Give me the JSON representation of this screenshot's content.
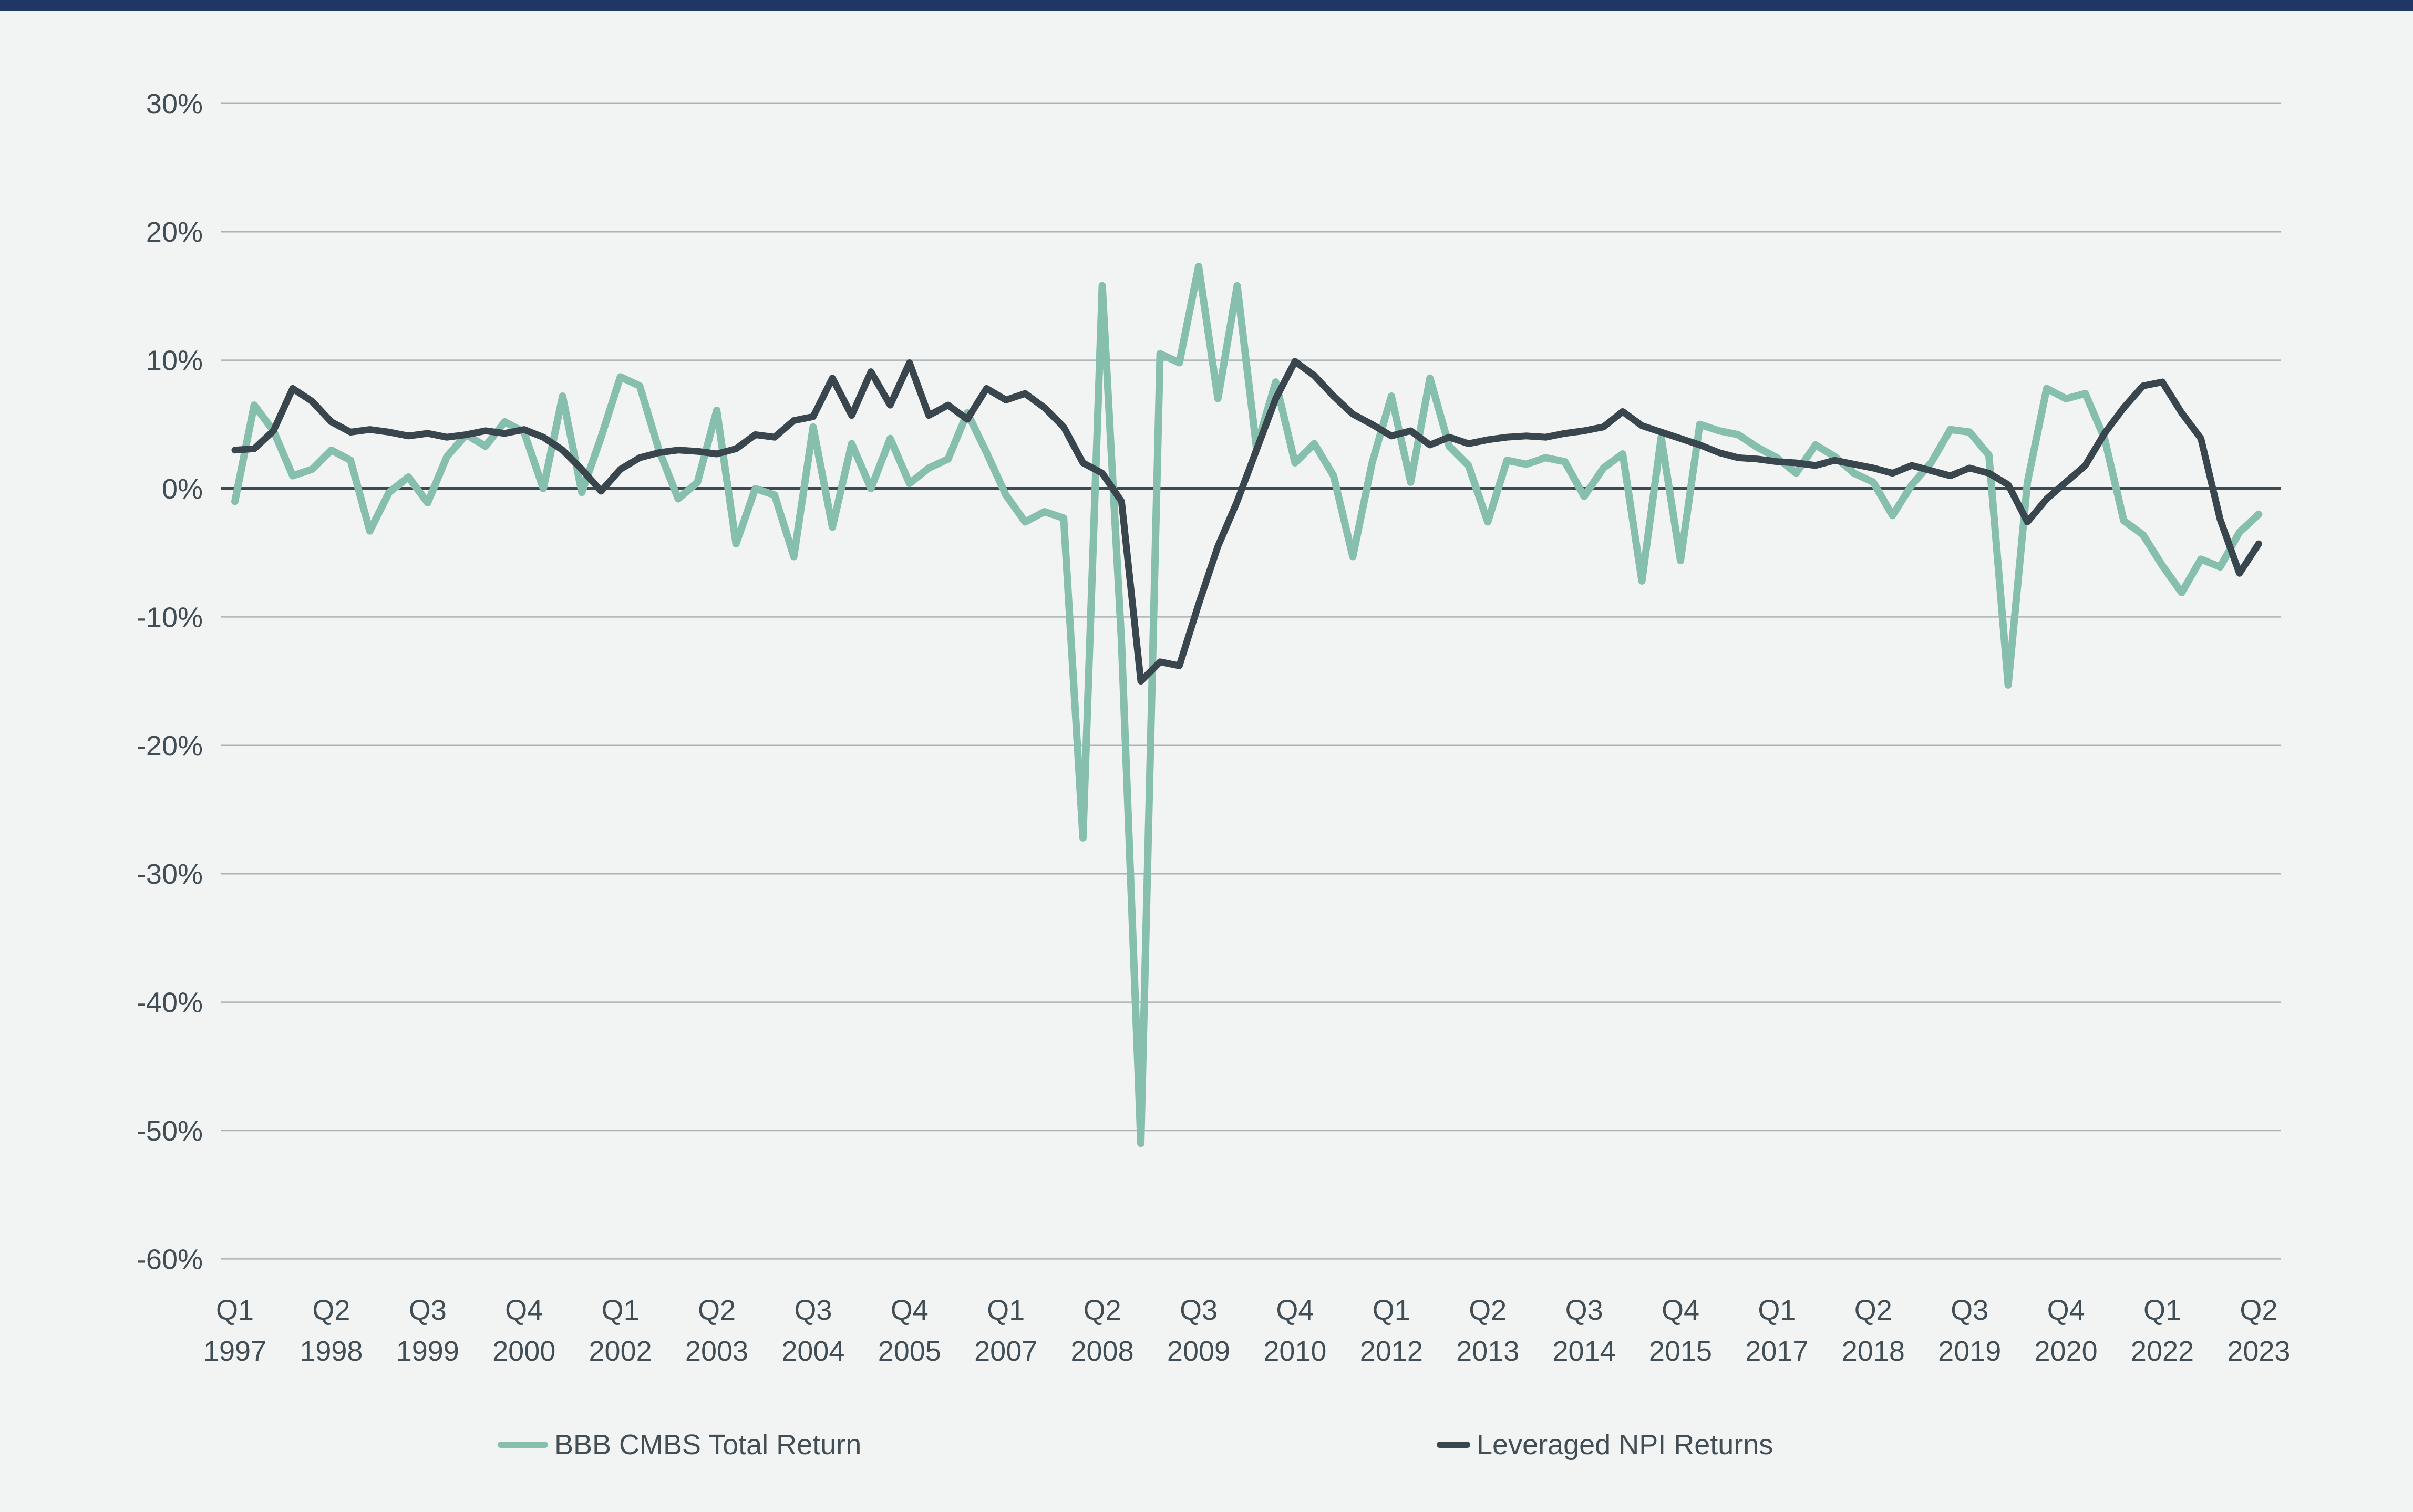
{
  "page": {
    "background_color": "#f2f4f4",
    "top_bar_color": "#1e3765",
    "text_color": "#424e55",
    "gridline_color": "#a9b2b5",
    "zero_line_color": "#3e4a51"
  },
  "chart_data": {
    "type": "line",
    "title": "",
    "xlabel": "",
    "ylabel": "",
    "grid": true,
    "legend_position": "bottom",
    "x_start": "1997Q1",
    "x_end": "2023Q2",
    "x_frequency": "quarterly",
    "ylim": [
      -60,
      30
    ],
    "y_ticks": [
      {
        "value": 30,
        "label": "30%"
      },
      {
        "value": 20,
        "label": "20%"
      },
      {
        "value": 10,
        "label": "10%"
      },
      {
        "value": 0,
        "label": "0%"
      },
      {
        "value": -10,
        "label": "-10%"
      },
      {
        "value": -20,
        "label": "-20%"
      },
      {
        "value": -30,
        "label": "-30%"
      },
      {
        "value": -40,
        "label": "-40%"
      },
      {
        "value": -50,
        "label": "-50%"
      },
      {
        "value": -60,
        "label": "-60%"
      }
    ],
    "x_ticks": [
      {
        "index": 0,
        "quarter": "Q1",
        "year": "1997"
      },
      {
        "index": 5,
        "quarter": "Q2",
        "year": "1998"
      },
      {
        "index": 10,
        "quarter": "Q3",
        "year": "1999"
      },
      {
        "index": 15,
        "quarter": "Q4",
        "year": "2000"
      },
      {
        "index": 20,
        "quarter": "Q1",
        "year": "2002"
      },
      {
        "index": 25,
        "quarter": "Q2",
        "year": "2003"
      },
      {
        "index": 30,
        "quarter": "Q3",
        "year": "2004"
      },
      {
        "index": 35,
        "quarter": "Q4",
        "year": "2005"
      },
      {
        "index": 40,
        "quarter": "Q1",
        "year": "2007"
      },
      {
        "index": 45,
        "quarter": "Q2",
        "year": "2008"
      },
      {
        "index": 50,
        "quarter": "Q3",
        "year": "2009"
      },
      {
        "index": 55,
        "quarter": "Q4",
        "year": "2010"
      },
      {
        "index": 60,
        "quarter": "Q1",
        "year": "2012"
      },
      {
        "index": 65,
        "quarter": "Q2",
        "year": "2013"
      },
      {
        "index": 70,
        "quarter": "Q3",
        "year": "2014"
      },
      {
        "index": 75,
        "quarter": "Q4",
        "year": "2015"
      },
      {
        "index": 80,
        "quarter": "Q1",
        "year": "2017"
      },
      {
        "index": 85,
        "quarter": "Q2",
        "year": "2018"
      },
      {
        "index": 90,
        "quarter": "Q3",
        "year": "2019"
      },
      {
        "index": 95,
        "quarter": "Q4",
        "year": "2020"
      },
      {
        "index": 100,
        "quarter": "Q1",
        "year": "2022"
      },
      {
        "index": 105,
        "quarter": "Q2",
        "year": "2023"
      }
    ],
    "series": [
      {
        "name": "BBB CMBS Total Return",
        "color": "#87bfae",
        "stroke_width": 14,
        "values": [
          -1.0,
          6.5,
          4.5,
          1.0,
          1.5,
          3.0,
          2.2,
          -3.3,
          -0.3,
          0.9,
          -1.1,
          2.5,
          4.2,
          3.3,
          5.2,
          4.4,
          0.0,
          7.2,
          -0.3,
          4.0,
          8.7,
          8.0,
          3.0,
          -0.8,
          0.5,
          6.1,
          -4.3,
          0.0,
          -0.5,
          -5.3,
          4.8,
          -3.0,
          3.5,
          0.0,
          3.9,
          0.4,
          1.6,
          2.3,
          5.9,
          2.8,
          -0.5,
          -2.6,
          -1.8,
          -2.3,
          -27.2,
          15.8,
          -12.0,
          -51.0,
          10.5,
          9.8,
          17.3,
          7.0,
          15.8,
          3.2,
          8.3,
          2.0,
          3.5,
          1.0,
          -5.3,
          2.0,
          7.2,
          0.5,
          8.6,
          3.3,
          1.8,
          -2.6,
          2.2,
          1.9,
          2.4,
          2.1,
          -0.6,
          1.6,
          2.7,
          -7.2,
          4.0,
          -5.6,
          5.0,
          4.5,
          4.2,
          3.2,
          2.4,
          1.2,
          3.4,
          2.5,
          1.2,
          0.5,
          -2.1,
          0.3,
          2.0,
          4.6,
          4.4,
          2.6,
          -15.3,
          0.5,
          7.8,
          7.0,
          7.4,
          3.9,
          -2.5,
          -3.6,
          -6.0,
          -8.1,
          -5.5,
          -6.1,
          -3.4,
          -2.0
        ]
      },
      {
        "name": "Leveraged NPI Returns",
        "color": "#3a464d",
        "stroke_width": 13,
        "values": [
          3.0,
          3.1,
          4.5,
          7.8,
          6.8,
          5.2,
          4.4,
          4.6,
          4.4,
          4.1,
          4.3,
          4.0,
          4.2,
          4.5,
          4.3,
          4.6,
          4.0,
          3.0,
          1.5,
          -0.2,
          1.5,
          2.4,
          2.8,
          3.0,
          2.9,
          2.7,
          3.1,
          4.2,
          4.0,
          5.3,
          5.6,
          8.6,
          5.7,
          9.1,
          6.5,
          9.8,
          5.7,
          6.5,
          5.4,
          7.8,
          6.9,
          7.4,
          6.3,
          4.8,
          2.0,
          1.2,
          -1.0,
          -15.0,
          -13.5,
          -13.8,
          -9.0,
          -4.5,
          -1.0,
          3.0,
          7.0,
          9.9,
          8.8,
          7.2,
          5.8,
          5.0,
          4.1,
          4.5,
          3.4,
          4.0,
          3.5,
          3.8,
          4.0,
          4.1,
          4.0,
          4.3,
          4.5,
          4.8,
          6.0,
          4.9,
          4.4,
          3.9,
          3.4,
          2.8,
          2.4,
          2.3,
          2.1,
          2.0,
          1.8,
          2.2,
          1.9,
          1.6,
          1.2,
          1.8,
          1.4,
          1.0,
          1.6,
          1.2,
          0.3,
          -2.6,
          -0.8,
          0.5,
          1.8,
          4.3,
          6.3,
          8.0,
          8.3,
          5.9,
          3.9,
          -2.4,
          -6.6,
          -4.3
        ]
      }
    ]
  },
  "legend": {
    "swatch_widths": [
      96,
      64
    ]
  }
}
